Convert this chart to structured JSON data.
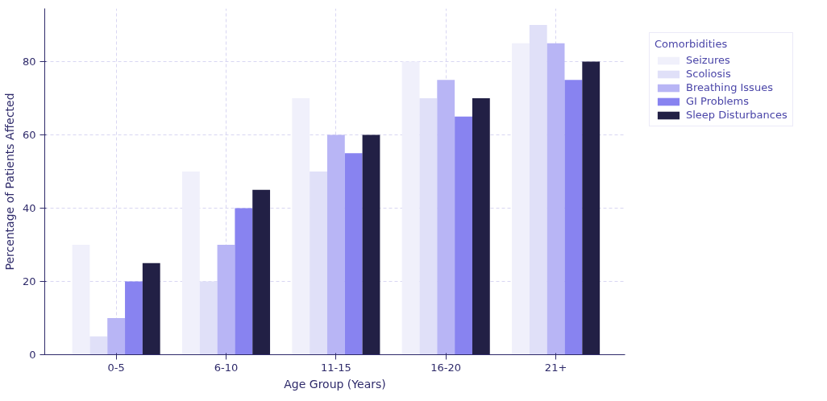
{
  "chart_data": {
    "type": "bar",
    "xlabel": "Age Group (Years)",
    "ylabel": "Percentage of Patients Affected",
    "legend_title": "Comorbidities",
    "categories": [
      "0-5",
      "6-10",
      "11-15",
      "16-20",
      "21+"
    ],
    "series": [
      {
        "name": "Seizures",
        "color": "#f0f0fb",
        "values": [
          30,
          50,
          70,
          80,
          85
        ]
      },
      {
        "name": "Scoliosis",
        "color": "#e0e0f8",
        "values": [
          5,
          20,
          50,
          70,
          90
        ]
      },
      {
        "name": "Breathing Issues",
        "color": "#b8b5f5",
        "values": [
          10,
          30,
          60,
          75,
          85
        ]
      },
      {
        "name": "GI Problems",
        "color": "#8883f0",
        "values": [
          20,
          40,
          55,
          65,
          75
        ]
      },
      {
        "name": "Sleep Disturbances",
        "color": "#222045",
        "values": [
          25,
          45,
          60,
          70,
          80
        ]
      }
    ],
    "ylim": [
      0,
      94.5
    ],
    "yticks": [
      0,
      20,
      40,
      60,
      80
    ],
    "grid": true,
    "legend": "top right"
  }
}
